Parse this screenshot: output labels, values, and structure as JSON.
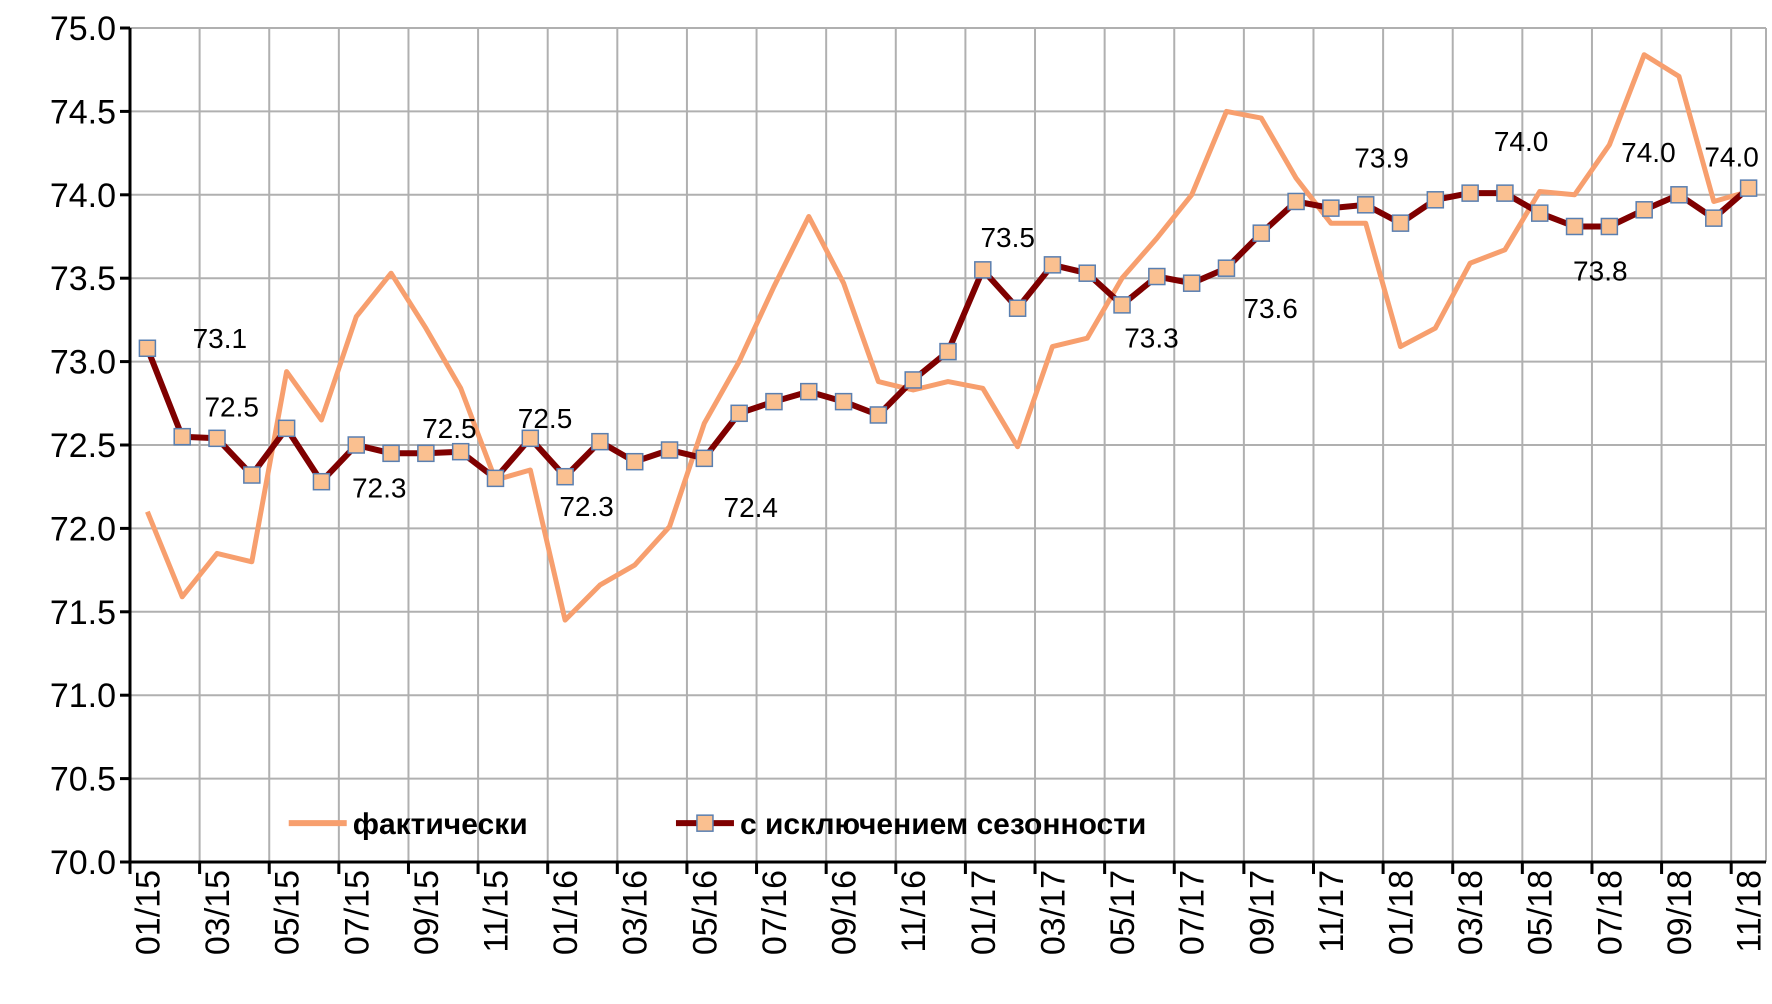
{
  "chart_data": {
    "type": "line",
    "categories": [
      "01/15",
      null,
      "03/15",
      null,
      "05/15",
      null,
      "07/15",
      null,
      "09/15",
      null,
      "11/15",
      null,
      "01/16",
      null,
      "03/16",
      null,
      "05/16",
      null,
      "07/16",
      null,
      "09/16",
      null,
      "11/16",
      null,
      "01/17",
      null,
      "03/17",
      null,
      "05/17",
      null,
      "07/17",
      null,
      "09/17",
      null,
      "11/17",
      null,
      "01/18",
      null,
      "03/18",
      null,
      "05/18",
      null,
      "07/18",
      null,
      "09/18",
      null,
      "11/18"
    ],
    "series": [
      {
        "name": "фактически",
        "color": "#f79f6e",
        "values": [
          72.1,
          71.59,
          71.85,
          71.8,
          72.94,
          72.65,
          73.27,
          73.53,
          73.2,
          72.84,
          72.29,
          72.35,
          71.45,
          71.66,
          71.78,
          72.01,
          72.63,
          73.0,
          73.45,
          73.87,
          73.47,
          72.88,
          72.83,
          72.88,
          72.84,
          72.49,
          73.09,
          73.14,
          73.5,
          73.74,
          74.0,
          74.5,
          74.46,
          74.1,
          73.83,
          73.83,
          73.09,
          73.2,
          73.59,
          73.67,
          74.02,
          74.0,
          74.3,
          74.84,
          74.71,
          73.96,
          74.02
        ]
      },
      {
        "name": "с исключением  сезонности",
        "color": "#7f0000",
        "marker": "square",
        "marker_color": "#fac090",
        "values": [
          73.08,
          72.55,
          72.54,
          72.32,
          72.6,
          72.28,
          72.5,
          72.45,
          72.45,
          72.46,
          72.3,
          72.54,
          72.31,
          72.52,
          72.4,
          72.47,
          72.42,
          72.69,
          72.76,
          72.82,
          72.76,
          72.68,
          72.89,
          73.06,
          73.55,
          73.32,
          73.58,
          73.53,
          73.34,
          73.51,
          73.47,
          73.56,
          73.77,
          73.96,
          73.92,
          73.94,
          73.83,
          73.97,
          74.01,
          74.01,
          73.89,
          73.81,
          73.81,
          73.91,
          74.0,
          73.86,
          74.04
        ],
        "value_labels": [
          "73.1",
          null,
          "72.5",
          null,
          null,
          "72.3",
          null,
          null,
          null,
          "72.5",
          null,
          "72.5",
          "72.3",
          null,
          null,
          null,
          "72.4",
          null,
          null,
          null,
          null,
          null,
          null,
          null,
          "73.5",
          null,
          null,
          null,
          "73.3",
          null,
          null,
          "73.6",
          null,
          null,
          null,
          "73.9",
          null,
          null,
          "74.0",
          null,
          null,
          null,
          "73.8",
          null,
          "74.0",
          null,
          "74.0"
        ]
      }
    ],
    "ylim": [
      70,
      75
    ],
    "yticks": [
      {
        "value": 70,
        "label": "70.0"
      },
      {
        "value": 70.5,
        "label": "70.5"
      },
      {
        "value": 71,
        "label": "71.0"
      },
      {
        "value": 71.5,
        "label": "71.5"
      },
      {
        "value": 72,
        "label": "72.0"
      },
      {
        "value": 72.5,
        "label": "72.5"
      },
      {
        "value": 73,
        "label": "73.0"
      },
      {
        "value": 73.5,
        "label": "73.5"
      },
      {
        "value": 74,
        "label": "74.0"
      },
      {
        "value": 74.5,
        "label": "74.5"
      },
      {
        "value": 75,
        "label": "75.0"
      }
    ],
    "grid": true,
    "legend": "bottom-left"
  }
}
